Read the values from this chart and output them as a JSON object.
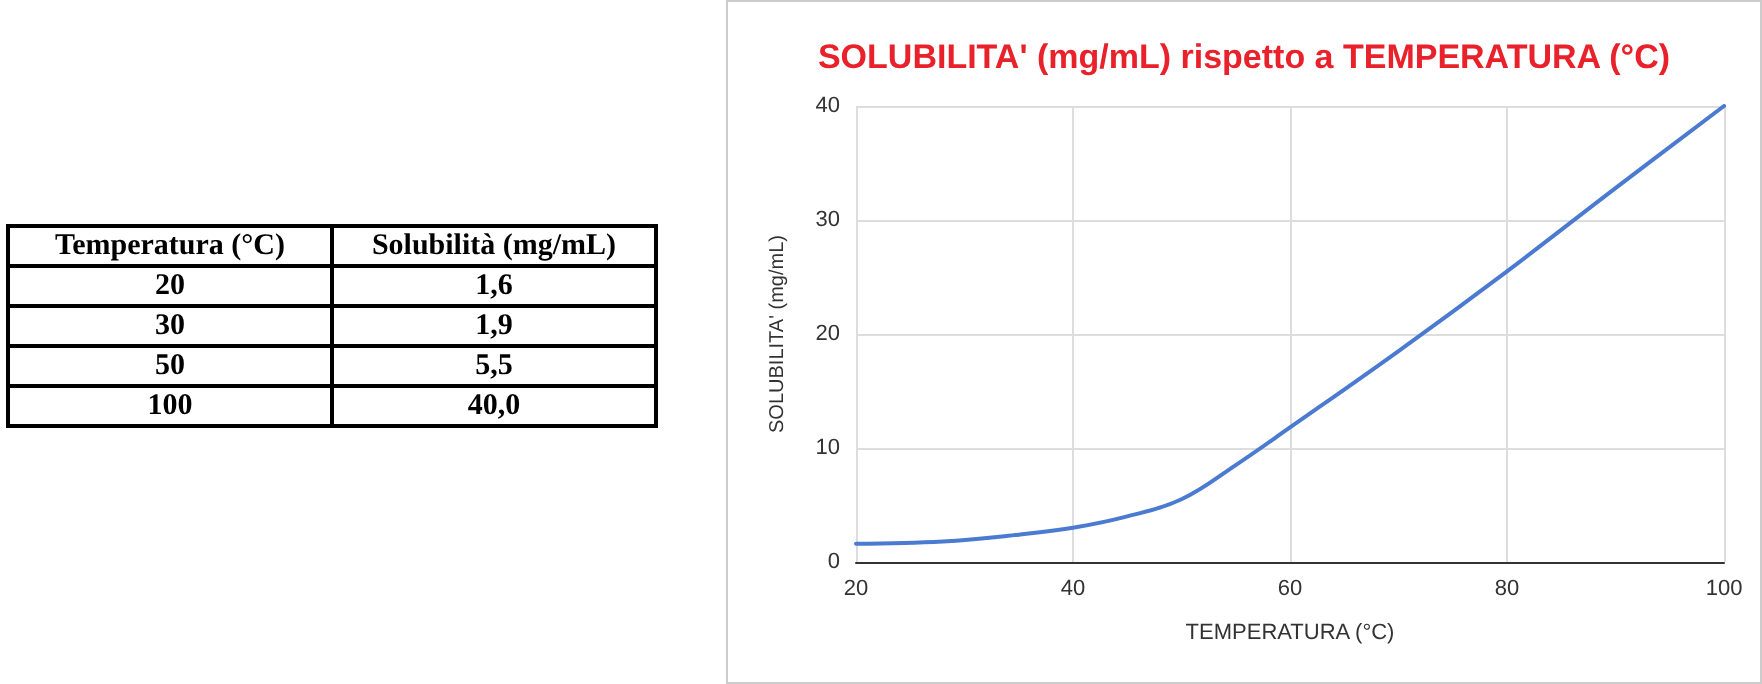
{
  "chart_data": [
    {
      "type": "other",
      "annotations": [
        "Temperatura (°C)",
        "Solubilità (mg/mL)"
      ],
      "categories": [
        "20",
        "30",
        "50",
        "100"
      ],
      "values": [
        1.6,
        1.9,
        5.5,
        40.0
      ],
      "value_labels": [
        "1,6",
        "1,9",
        "5,5",
        "40,0"
      ]
    },
    {
      "type": "line",
      "title": "SOLUBILITA' (mg/mL) rispetto a TEMPERATURA (°C)",
      "xlabel": "TEMPERATURA (°C)",
      "ylabel": "SOLUBILITA' (mg/mL)",
      "x": [
        20,
        28,
        35,
        40,
        45,
        50,
        55,
        60,
        70,
        80,
        90,
        100
      ],
      "series": [
        {
          "color": "#4a7bd0",
          "values": [
            1.6,
            1.8,
            2.4,
            3.0,
            4.0,
            5.5,
            8.5,
            11.8,
            18.5,
            25.5,
            32.8,
            40.0
          ]
        }
      ],
      "xlim": [
        20,
        100
      ],
      "xticks": [
        20,
        40,
        60,
        80,
        100
      ],
      "ylim": [
        0,
        40
      ],
      "yticks": [
        0,
        10,
        20,
        30,
        40
      ],
      "grid": true,
      "marker": "none",
      "line_style": "solid"
    }
  ]
}
